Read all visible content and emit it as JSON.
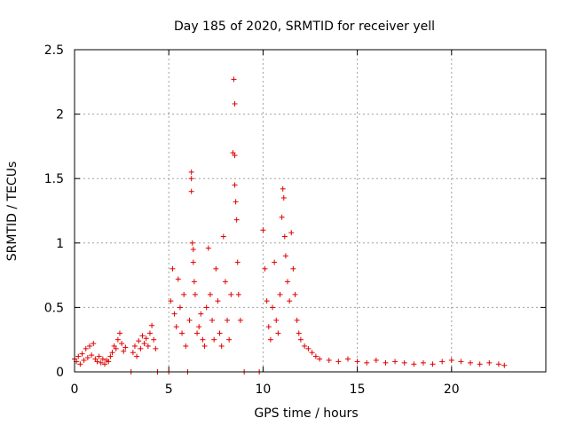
{
  "chart_data": {
    "type": "scatter",
    "title": "Day 185 of 2020, SRMTID for receiver yell",
    "xlabel": "GPS time / hours",
    "ylabel": "SRMTID / TECUs",
    "xlim": [
      0,
      25
    ],
    "ylim": [
      0,
      2.5
    ],
    "xticks": [
      0,
      5,
      10,
      15,
      20
    ],
    "xtick_labels": [
      "0",
      "5",
      "10",
      "15",
      "20"
    ],
    "yticks": [
      0,
      0.5,
      1,
      1.5,
      2,
      2.5
    ],
    "ytick_labels": [
      "0",
      "0.5",
      "1",
      "1.5",
      "2",
      "2.5"
    ],
    "grid": true,
    "marker": "+",
    "color": "#e00000",
    "series": [
      {
        "name": "SRMTID",
        "points": [
          [
            0.0,
            0.1
          ],
          [
            0.1,
            0.08
          ],
          [
            0.2,
            0.12
          ],
          [
            0.3,
            0.06
          ],
          [
            0.4,
            0.14
          ],
          [
            0.5,
            0.09
          ],
          [
            0.6,
            0.18
          ],
          [
            0.7,
            0.11
          ],
          [
            0.8,
            0.2
          ],
          [
            0.9,
            0.13
          ],
          [
            1.0,
            0.22
          ],
          [
            1.1,
            0.1
          ],
          [
            1.2,
            0.08
          ],
          [
            1.3,
            0.12
          ],
          [
            1.4,
            0.07
          ],
          [
            1.5,
            0.1
          ],
          [
            1.6,
            0.06
          ],
          [
            1.7,
            0.09
          ],
          [
            1.8,
            0.08
          ],
          [
            1.9,
            0.12
          ],
          [
            2.0,
            0.15
          ],
          [
            2.1,
            0.2
          ],
          [
            2.2,
            0.18
          ],
          [
            2.3,
            0.25
          ],
          [
            2.4,
            0.3
          ],
          [
            2.5,
            0.22
          ],
          [
            2.6,
            0.16
          ],
          [
            2.7,
            0.19
          ],
          [
            3.0,
            0.0
          ],
          [
            3.1,
            0.15
          ],
          [
            3.2,
            0.2
          ],
          [
            3.3,
            0.12
          ],
          [
            3.4,
            0.24
          ],
          [
            3.5,
            0.18
          ],
          [
            3.6,
            0.28
          ],
          [
            3.7,
            0.22
          ],
          [
            3.8,
            0.26
          ],
          [
            3.9,
            0.2
          ],
          [
            4.0,
            0.3
          ],
          [
            4.1,
            0.36
          ],
          [
            4.2,
            0.25
          ],
          [
            4.3,
            0.18
          ],
          [
            4.4,
            0.0
          ],
          [
            5.0,
            0.0
          ],
          [
            5.1,
            0.55
          ],
          [
            5.2,
            0.8
          ],
          [
            5.3,
            0.45
          ],
          [
            5.4,
            0.35
          ],
          [
            5.5,
            0.72
          ],
          [
            5.6,
            0.5
          ],
          [
            5.7,
            0.3
          ],
          [
            5.8,
            0.6
          ],
          [
            5.9,
            0.2
          ],
          [
            6.0,
            0.0
          ],
          [
            6.1,
            0.4
          ],
          [
            6.2,
            1.55
          ],
          [
            6.2,
            1.5
          ],
          [
            6.2,
            1.4
          ],
          [
            6.25,
            1.0
          ],
          [
            6.3,
            0.95
          ],
          [
            6.3,
            0.85
          ],
          [
            6.35,
            0.7
          ],
          [
            6.4,
            0.6
          ],
          [
            6.5,
            0.3
          ],
          [
            6.6,
            0.35
          ],
          [
            6.7,
            0.45
          ],
          [
            6.8,
            0.25
          ],
          [
            6.9,
            0.2
          ],
          [
            7.0,
            0.5
          ],
          [
            7.1,
            0.96
          ],
          [
            7.2,
            0.6
          ],
          [
            7.3,
            0.4
          ],
          [
            7.4,
            0.25
          ],
          [
            7.5,
            0.8
          ],
          [
            7.6,
            0.55
          ],
          [
            7.7,
            0.3
          ],
          [
            7.8,
            0.2
          ],
          [
            7.9,
            1.05
          ],
          [
            8.0,
            0.7
          ],
          [
            8.1,
            0.4
          ],
          [
            8.2,
            0.25
          ],
          [
            8.3,
            0.6
          ],
          [
            8.4,
            1.7
          ],
          [
            8.45,
            2.27
          ],
          [
            8.5,
            2.08
          ],
          [
            8.5,
            1.68
          ],
          [
            8.5,
            1.45
          ],
          [
            8.55,
            1.32
          ],
          [
            8.6,
            1.18
          ],
          [
            8.65,
            0.85
          ],
          [
            8.7,
            0.6
          ],
          [
            8.8,
            0.4
          ],
          [
            9.0,
            0.0
          ],
          [
            9.8,
            0.0
          ],
          [
            10.0,
            1.1
          ],
          [
            10.1,
            0.8
          ],
          [
            10.2,
            0.55
          ],
          [
            10.3,
            0.35
          ],
          [
            10.4,
            0.25
          ],
          [
            10.5,
            0.5
          ],
          [
            10.6,
            0.85
          ],
          [
            10.7,
            0.4
          ],
          [
            10.8,
            0.3
          ],
          [
            10.9,
            0.6
          ],
          [
            11.0,
            1.2
          ],
          [
            11.05,
            1.42
          ],
          [
            11.1,
            1.35
          ],
          [
            11.15,
            1.05
          ],
          [
            11.2,
            0.9
          ],
          [
            11.3,
            0.7
          ],
          [
            11.4,
            0.55
          ],
          [
            11.5,
            1.08
          ],
          [
            11.6,
            0.8
          ],
          [
            11.7,
            0.6
          ],
          [
            11.8,
            0.4
          ],
          [
            11.9,
            0.3
          ],
          [
            12.0,
            0.25
          ],
          [
            12.2,
            0.2
          ],
          [
            12.4,
            0.18
          ],
          [
            12.6,
            0.15
          ],
          [
            12.8,
            0.12
          ],
          [
            13.0,
            0.1
          ],
          [
            13.5,
            0.09
          ],
          [
            14.0,
            0.08
          ],
          [
            14.5,
            0.1
          ],
          [
            15.0,
            0.08
          ],
          [
            15.5,
            0.07
          ],
          [
            16.0,
            0.09
          ],
          [
            16.5,
            0.07
          ],
          [
            17.0,
            0.08
          ],
          [
            17.5,
            0.07
          ],
          [
            18.0,
            0.06
          ],
          [
            18.5,
            0.07
          ],
          [
            19.0,
            0.06
          ],
          [
            19.5,
            0.08
          ],
          [
            20.0,
            0.09
          ],
          [
            20.5,
            0.08
          ],
          [
            21.0,
            0.07
          ],
          [
            21.5,
            0.06
          ],
          [
            22.0,
            0.07
          ],
          [
            22.5,
            0.06
          ],
          [
            22.8,
            0.05
          ]
        ]
      }
    ]
  }
}
